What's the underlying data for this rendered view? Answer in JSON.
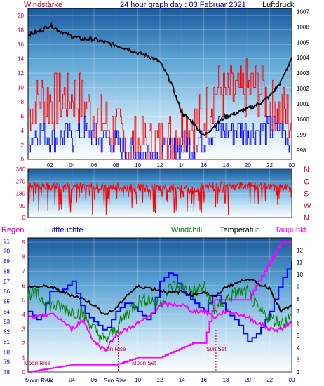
{
  "title": "24 hour graph day : 03 Februar 2021",
  "colors": {
    "sky_top": "#1a5a9e",
    "sky_mid": "#5fa6d6",
    "sky_low": "#b9dcf2",
    "sky_bottom": "#ffffff",
    "red": "#ff0000",
    "blue": "#0000ff",
    "black": "#000000",
    "green": "#008000",
    "magenta": "#ff00ff",
    "crimson": "#cc0033",
    "navy": "#000080",
    "label_blue": "#0000cc"
  },
  "x_tick_labels": [
    "02",
    "04",
    "06",
    "08",
    "10",
    "12",
    "14",
    "16",
    "18",
    "20",
    "22",
    "00"
  ],
  "chart_data": [
    {
      "type": "line",
      "name": "wind-pressure",
      "left_title": "Windstärke",
      "right_title": "Luftdruck",
      "left_ticks": [
        "0",
        "2",
        "4",
        "6",
        "8",
        "10",
        "12",
        "14",
        "16",
        "18",
        "20"
      ],
      "right_ticks": [
        "998",
        "999",
        "1000",
        "1001",
        "1002",
        "1003",
        "1004",
        "1005",
        "1006",
        "1007"
      ],
      "x_range": [
        0,
        24
      ],
      "left_range": [
        0,
        21
      ],
      "right_range": [
        997.4,
        1007.2
      ],
      "pressure": [
        [
          0,
          1005.5
        ],
        [
          1,
          1005.7
        ],
        [
          2,
          1006.1
        ],
        [
          3,
          1005.7
        ],
        [
          4,
          1005.4
        ],
        [
          5,
          1005.2
        ],
        [
          6,
          1005.2
        ],
        [
          7,
          1005.0
        ],
        [
          8,
          1004.8
        ],
        [
          9,
          1004.6
        ],
        [
          10,
          1004.3
        ],
        [
          11,
          1004.1
        ],
        [
          12,
          1003.7
        ],
        [
          13,
          1002.4
        ],
        [
          14,
          1000.4
        ],
        [
          15,
          999.8
        ],
        [
          16,
          998.9
        ],
        [
          17,
          999.6
        ],
        [
          18,
          1000.2
        ],
        [
          19,
          1000.4
        ],
        [
          20,
          1000.7
        ],
        [
          21,
          1001.0
        ],
        [
          22,
          1001.5
        ],
        [
          23,
          1002.4
        ],
        [
          24,
          1004.0
        ]
      ],
      "wind_red": [
        [
          0,
          6
        ],
        [
          1,
          9
        ],
        [
          2,
          8
        ],
        [
          3,
          8
        ],
        [
          4,
          9
        ],
        [
          5,
          8
        ],
        [
          6,
          6
        ],
        [
          7,
          5
        ],
        [
          8,
          4
        ],
        [
          9,
          2
        ],
        [
          10,
          2
        ],
        [
          11,
          2
        ],
        [
          12,
          2
        ],
        [
          13,
          3
        ],
        [
          14,
          5
        ],
        [
          15,
          5
        ],
        [
          16,
          6
        ],
        [
          17,
          10
        ],
        [
          18,
          9
        ],
        [
          19,
          9
        ],
        [
          20,
          10
        ],
        [
          21,
          10
        ],
        [
          22,
          8
        ],
        [
          23,
          7
        ],
        [
          24,
          5
        ]
      ],
      "wind_blue": [
        [
          0,
          3
        ],
        [
          1,
          4
        ],
        [
          2,
          3
        ],
        [
          3,
          3
        ],
        [
          4,
          3
        ],
        [
          5,
          4
        ],
        [
          6,
          3
        ],
        [
          7,
          3
        ],
        [
          8,
          2
        ],
        [
          9,
          1
        ],
        [
          10,
          1
        ],
        [
          11,
          1
        ],
        [
          12,
          1
        ],
        [
          13,
          1
        ],
        [
          14,
          2
        ],
        [
          15,
          2
        ],
        [
          16,
          3
        ],
        [
          17,
          4
        ],
        [
          18,
          4
        ],
        [
          19,
          4
        ],
        [
          20,
          4
        ],
        [
          21,
          4
        ],
        [
          22,
          4
        ],
        [
          23,
          4
        ],
        [
          24,
          2
        ]
      ]
    },
    {
      "type": "line",
      "name": "wind-direction",
      "left_ticks": [
        "0",
        "90",
        "180",
        "270",
        "360"
      ],
      "right_labels": [
        "N",
        "W",
        "S",
        "O",
        "N"
      ],
      "y_range": [
        0,
        360
      ],
      "direction_band": [
        [
          0,
          210,
          260
        ],
        [
          3,
          200,
          260
        ],
        [
          6,
          210,
          260
        ],
        [
          9,
          190,
          260
        ],
        [
          12,
          190,
          250
        ],
        [
          15,
          180,
          250
        ],
        [
          18,
          200,
          270
        ],
        [
          21,
          210,
          260
        ],
        [
          24,
          210,
          250
        ]
      ]
    },
    {
      "type": "line",
      "name": "humidity-temperature",
      "legend": [
        "Regen",
        "Luftfeuchte",
        "Windchill",
        "Temperatur",
        "Taupunkt"
      ],
      "left_ticks_humidity": [
        "78",
        "79",
        "80",
        "81",
        "82",
        "83",
        "84",
        "85",
        "86",
        "87",
        "88",
        "89",
        "90",
        "91"
      ],
      "left_ticks_rain": [
        "0",
        "1",
        "2",
        "3",
        "4",
        "5",
        "6",
        "7",
        "8",
        "9"
      ],
      "right_ticks": [
        "2",
        "3",
        "4",
        "5",
        "6",
        "7",
        "8",
        "9",
        "10",
        "11",
        "12"
      ],
      "temp_range": [
        2,
        13
      ],
      "temperature": [
        [
          0,
          9.0
        ],
        [
          1,
          9.0
        ],
        [
          2,
          9.0
        ],
        [
          3,
          8.6
        ],
        [
          4,
          8.3
        ],
        [
          5,
          8.0
        ],
        [
          6,
          7.5
        ],
        [
          7,
          6.7
        ],
        [
          8,
          7.2
        ],
        [
          9,
          8.3
        ],
        [
          10,
          9.0
        ],
        [
          11,
          8.9
        ],
        [
          12,
          8.7
        ],
        [
          13,
          8.5
        ],
        [
          14,
          8.6
        ],
        [
          15,
          8.3
        ],
        [
          16,
          8.6
        ],
        [
          17,
          8.1
        ],
        [
          18,
          9.0
        ],
        [
          19,
          9.3
        ],
        [
          20,
          9.7
        ],
        [
          21,
          9.2
        ],
        [
          22,
          8.9
        ],
        [
          23,
          7.0
        ],
        [
          24,
          7.4
        ]
      ],
      "windchill": [
        [
          0,
          8.5
        ],
        [
          1,
          8.2
        ],
        [
          2,
          7.5
        ],
        [
          3,
          7.3
        ],
        [
          4,
          7.0
        ],
        [
          5,
          6.8
        ],
        [
          6,
          5.5
        ],
        [
          7,
          4.5
        ],
        [
          8,
          5.5
        ],
        [
          9,
          6.8
        ],
        [
          10,
          7.8
        ],
        [
          11,
          8.0
        ],
        [
          12,
          7.5
        ],
        [
          13,
          9.0
        ],
        [
          14,
          9.0
        ],
        [
          15,
          8.5
        ],
        [
          16,
          9.0
        ],
        [
          17,
          7.0
        ],
        [
          18,
          8.0
        ],
        [
          19,
          8.5
        ],
        [
          20,
          8.5
        ],
        [
          21,
          7.0
        ],
        [
          22,
          6.5
        ],
        [
          23,
          6.0
        ],
        [
          24,
          6.5
        ]
      ],
      "dewpoint": [
        [
          0,
          6.5
        ],
        [
          1,
          6.5
        ],
        [
          2,
          6.8
        ],
        [
          3,
          6.3
        ],
        [
          4,
          5.5
        ],
        [
          5,
          6.3
        ],
        [
          6,
          4.5
        ],
        [
          7,
          3.8
        ],
        [
          8,
          5.0
        ],
        [
          9,
          5.5
        ],
        [
          10,
          6.0
        ],
        [
          11,
          6.5
        ],
        [
          12,
          7.5
        ],
        [
          13,
          7.5
        ],
        [
          14,
          7.5
        ],
        [
          15,
          7.0
        ],
        [
          16,
          7.0
        ],
        [
          17,
          6.5
        ],
        [
          18,
          7.0
        ],
        [
          19,
          6.8
        ],
        [
          20,
          6.5
        ],
        [
          21,
          6.0
        ],
        [
          22,
          5.5
        ],
        [
          23,
          5.5
        ],
        [
          24,
          6.0
        ]
      ],
      "humidity": [
        [
          0,
          84
        ],
        [
          1,
          83
        ],
        [
          2,
          86
        ],
        [
          3,
          86
        ],
        [
          4,
          87
        ],
        [
          5,
          84
        ],
        [
          6,
          83
        ],
        [
          7,
          82
        ],
        [
          8,
          84
        ],
        [
          9,
          85
        ],
        [
          10,
          84
        ],
        [
          11,
          83
        ],
        [
          12,
          87
        ],
        [
          13,
          88
        ],
        [
          14,
          86
        ],
        [
          15,
          85
        ],
        [
          16,
          84
        ],
        [
          17,
          86
        ],
        [
          18,
          84
        ],
        [
          19,
          83
        ],
        [
          20,
          81
        ],
        [
          21,
          82
        ],
        [
          22,
          84
        ],
        [
          23,
          87
        ],
        [
          24,
          89
        ]
      ],
      "rain": [
        [
          0,
          0
        ],
        [
          4,
          0.5
        ],
        [
          8,
          0.5
        ],
        [
          10,
          1
        ],
        [
          12,
          1
        ],
        [
          15,
          2
        ],
        [
          16,
          2
        ],
        [
          17,
          5
        ],
        [
          20,
          5
        ],
        [
          23,
          9
        ],
        [
          24,
          9
        ]
      ],
      "annotations": {
        "moon_rise": "Moon Rise",
        "sun_rise": "Sun Rise",
        "moon_set": "Moon Set",
        "sun_set": "Sun Set",
        "moon_rise_bottom": "Moon Rise",
        "sun_rise_bottom": "Sun Rise"
      }
    }
  ]
}
